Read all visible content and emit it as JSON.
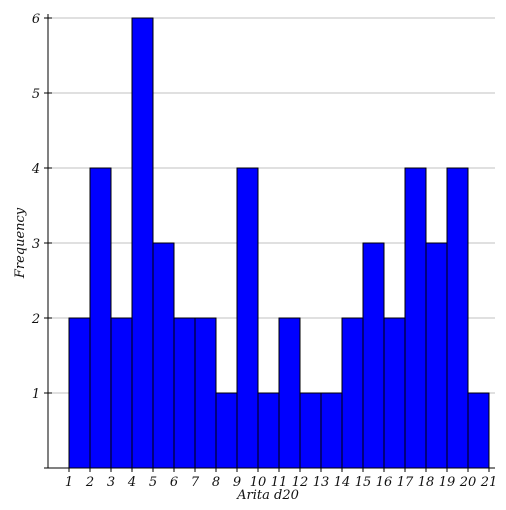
{
  "chart_data": {
    "type": "bar",
    "title": "",
    "xlabel": "Arita d20",
    "ylabel": "Frequency",
    "x_ticks": [
      "1",
      "2",
      "3",
      "4",
      "5",
      "6",
      "7",
      "8",
      "9",
      "10",
      "11",
      "12",
      "13",
      "14",
      "15",
      "16",
      "17",
      "18",
      "19",
      "20",
      "21"
    ],
    "y_ticks": [
      "1",
      "2",
      "3",
      "4",
      "5",
      "6"
    ],
    "bins": [
      {
        "start": 1,
        "end": 2,
        "value": 2
      },
      {
        "start": 2,
        "end": 3,
        "value": 4
      },
      {
        "start": 3,
        "end": 4,
        "value": 2
      },
      {
        "start": 4,
        "end": 5,
        "value": 6
      },
      {
        "start": 5,
        "end": 6,
        "value": 3
      },
      {
        "start": 6,
        "end": 7,
        "value": 2
      },
      {
        "start": 7,
        "end": 8,
        "value": 2
      },
      {
        "start": 8,
        "end": 9,
        "value": 1
      },
      {
        "start": 9,
        "end": 10,
        "value": 4
      },
      {
        "start": 10,
        "end": 11,
        "value": 1
      },
      {
        "start": 11,
        "end": 12,
        "value": 2
      },
      {
        "start": 12,
        "end": 13,
        "value": 1
      },
      {
        "start": 13,
        "end": 14,
        "value": 1
      },
      {
        "start": 14,
        "end": 15,
        "value": 2
      },
      {
        "start": 15,
        "end": 16,
        "value": 3
      },
      {
        "start": 16,
        "end": 17,
        "value": 2
      },
      {
        "start": 17,
        "end": 18,
        "value": 4
      },
      {
        "start": 18,
        "end": 19,
        "value": 3
      },
      {
        "start": 19,
        "end": 20,
        "value": 4
      },
      {
        "start": 20,
        "end": 21,
        "value": 1
      }
    ],
    "xlim": [
      1,
      21
    ],
    "ylim": [
      0,
      6
    ],
    "grid": true,
    "bar_color": "#0000ff",
    "bar_edge_color": "#000000",
    "grid_color": "#c0c0c0"
  }
}
